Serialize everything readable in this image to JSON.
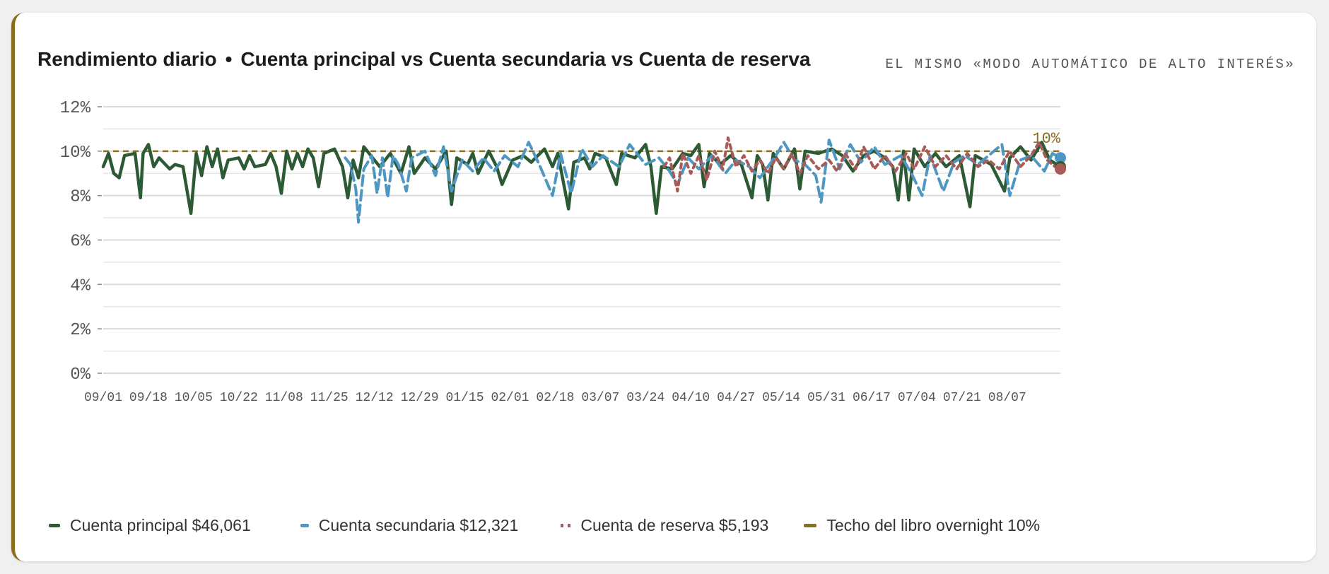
{
  "header": {
    "title_main": "Rendimiento diario",
    "title_separator": "•",
    "title_accounts": "Cuenta principal vs Cuenta secundaria vs Cuenta de reserva",
    "subtitle": "EL MISMO «MODO AUTOMÁTICO DE ALTO INTERÉS»"
  },
  "colors": {
    "primary": "#2b5a34",
    "secondary": "#4d97c2",
    "reserve": "#a85a57",
    "ceiling": "#8a6d1f",
    "card_accent": "#8a6d1f",
    "grid": "#dadada"
  },
  "legend": {
    "primary": "Cuenta principal $46,061",
    "secondary": "Cuenta secundaria $12,321",
    "reserve": "Cuenta de reserva $5,193",
    "ceiling": "Techo del libro overnight 10%"
  },
  "chart_data": {
    "type": "line",
    "title": "Rendimiento diario • Cuenta principal vs Cuenta secundaria vs Cuenta de reserva",
    "subtitle": "EL MISMO «MODO AUTOMÁTICO DE ALTO INTERÉS»",
    "xlabel": "",
    "ylabel": "",
    "y_unit": "%",
    "ylim": [
      0,
      12
    ],
    "y_ticks": [
      "0%",
      "2%",
      "4%",
      "6%",
      "8%",
      "10%",
      "12%"
    ],
    "y_tick_values": [
      0,
      2,
      4,
      6,
      8,
      10,
      12
    ],
    "x_range": [
      "09/01",
      "08/27"
    ],
    "x_tick_labels": [
      "09/01",
      "09/18",
      "10/05",
      "10/22",
      "11/08",
      "11/25",
      "12/12",
      "12/29",
      "01/15",
      "02/01",
      "02/18",
      "03/07",
      "03/24",
      "04/10",
      "04/27",
      "05/14",
      "05/31",
      "06/17",
      "07/04",
      "07/21",
      "08/07"
    ],
    "grid": true,
    "legend_position": "bottom",
    "reference_line": {
      "name": "Techo del libro overnight 10%",
      "value": 10,
      "label": "10%",
      "style": "dashed"
    },
    "series": [
      {
        "name": "Cuenta principal",
        "style": "solid",
        "start": "09/01",
        "end": "08/27",
        "keypoints": [
          [
            "09/01",
            9.3
          ],
          [
            "09/03",
            9.9
          ],
          [
            "09/05",
            9.0
          ],
          [
            "09/07",
            8.8
          ],
          [
            "09/09",
            9.8
          ],
          [
            "09/13",
            9.9
          ],
          [
            "09/15",
            7.9
          ],
          [
            "09/16",
            9.9
          ],
          [
            "09/18",
            10.3
          ],
          [
            "09/20",
            9.3
          ],
          [
            "09/22",
            9.7
          ],
          [
            "09/26",
            9.2
          ],
          [
            "09/28",
            9.4
          ],
          [
            "10/01",
            9.3
          ],
          [
            "10/04",
            7.2
          ],
          [
            "10/06",
            9.9
          ],
          [
            "10/08",
            8.9
          ],
          [
            "10/10",
            10.2
          ],
          [
            "10/12",
            9.3
          ],
          [
            "10/14",
            10.1
          ],
          [
            "10/16",
            8.8
          ],
          [
            "10/18",
            9.6
          ],
          [
            "10/22",
            9.7
          ],
          [
            "10/24",
            9.2
          ],
          [
            "10/26",
            9.8
          ],
          [
            "10/28",
            9.3
          ],
          [
            "11/01",
            9.4
          ],
          [
            "11/03",
            9.9
          ],
          [
            "11/05",
            9.3
          ],
          [
            "11/07",
            8.1
          ],
          [
            "11/09",
            10.0
          ],
          [
            "11/11",
            9.2
          ],
          [
            "11/13",
            9.9
          ],
          [
            "11/15",
            9.3
          ],
          [
            "11/17",
            10.1
          ],
          [
            "11/19",
            9.7
          ],
          [
            "11/21",
            8.4
          ],
          [
            "11/23",
            9.9
          ],
          [
            "11/27",
            10.1
          ],
          [
            "11/30",
            9.3
          ],
          [
            "12/02",
            7.9
          ],
          [
            "12/04",
            9.6
          ],
          [
            "12/06",
            8.8
          ],
          [
            "12/08",
            10.2
          ],
          [
            "12/12",
            9.6
          ],
          [
            "12/14",
            9.3
          ],
          [
            "12/18",
            9.9
          ],
          [
            "12/22",
            9.0
          ],
          [
            "12/25",
            10.2
          ],
          [
            "12/27",
            9.0
          ],
          [
            "12/31",
            9.7
          ],
          [
            "01/04",
            9.2
          ],
          [
            "01/08",
            10.0
          ],
          [
            "01/10",
            7.6
          ],
          [
            "01/12",
            9.7
          ],
          [
            "01/16",
            9.4
          ],
          [
            "01/18",
            9.9
          ],
          [
            "01/20",
            9.0
          ],
          [
            "01/24",
            10.0
          ],
          [
            "01/27",
            9.3
          ],
          [
            "01/29",
            8.5
          ],
          [
            "02/02",
            9.6
          ],
          [
            "02/06",
            9.8
          ],
          [
            "02/09",
            9.5
          ],
          [
            "02/14",
            10.1
          ],
          [
            "02/17",
            9.3
          ],
          [
            "02/19",
            9.9
          ],
          [
            "02/23",
            7.4
          ],
          [
            "02/25",
            9.5
          ],
          [
            "03/01",
            9.7
          ],
          [
            "03/03",
            9.2
          ],
          [
            "03/05",
            9.9
          ],
          [
            "03/09",
            9.7
          ],
          [
            "03/13",
            8.5
          ],
          [
            "03/15",
            9.9
          ],
          [
            "03/20",
            9.7
          ],
          [
            "03/24",
            10.3
          ],
          [
            "03/26",
            9.3
          ],
          [
            "03/28",
            7.2
          ],
          [
            "03/30",
            9.3
          ],
          [
            "04/03",
            9.2
          ],
          [
            "04/07",
            9.9
          ],
          [
            "04/10",
            9.8
          ],
          [
            "04/13",
            10.3
          ],
          [
            "04/15",
            8.4
          ],
          [
            "04/17",
            9.9
          ],
          [
            "04/21",
            9.4
          ],
          [
            "04/25",
            9.8
          ],
          [
            "04/29",
            9.4
          ],
          [
            "05/03",
            7.9
          ],
          [
            "05/05",
            9.8
          ],
          [
            "05/07",
            9.4
          ],
          [
            "05/09",
            7.8
          ],
          [
            "05/11",
            9.9
          ],
          [
            "05/15",
            9.2
          ],
          [
            "05/19",
            10.1
          ],
          [
            "05/21",
            8.3
          ],
          [
            "05/23",
            10.0
          ],
          [
            "05/28",
            9.9
          ],
          [
            "06/02",
            10.1
          ],
          [
            "06/06",
            9.8
          ],
          [
            "06/10",
            9.1
          ],
          [
            "06/14",
            9.8
          ],
          [
            "06/18",
            10.0
          ],
          [
            "06/22",
            9.7
          ],
          [
            "06/25",
            9.3
          ],
          [
            "06/27",
            7.8
          ],
          [
            "06/29",
            10.0
          ],
          [
            "07/01",
            7.8
          ],
          [
            "07/03",
            10.1
          ],
          [
            "07/07",
            9.3
          ],
          [
            "07/11",
            9.9
          ],
          [
            "07/15",
            9.3
          ],
          [
            "07/20",
            9.8
          ],
          [
            "07/24",
            7.5
          ],
          [
            "07/26",
            9.8
          ],
          [
            "08/01",
            9.4
          ],
          [
            "08/06",
            8.2
          ],
          [
            "08/08",
            9.7
          ],
          [
            "08/12",
            10.2
          ],
          [
            "08/16",
            9.6
          ],
          [
            "08/20",
            10.4
          ],
          [
            "08/23",
            9.6
          ],
          [
            "08/27",
            9.3
          ]
        ]
      },
      {
        "name": "Cuenta secundaria",
        "style": "dashed",
        "start": "12/01",
        "end": "08/27",
        "keypoints": [
          [
            "12/01",
            9.7
          ],
          [
            "12/03",
            9.4
          ],
          [
            "12/05",
            8.3
          ],
          [
            "12/06",
            6.8
          ],
          [
            "12/08",
            9.2
          ],
          [
            "12/11",
            9.8
          ],
          [
            "12/13",
            8.1
          ],
          [
            "12/15",
            9.7
          ],
          [
            "12/17",
            7.9
          ],
          [
            "12/19",
            9.8
          ],
          [
            "12/21",
            9.4
          ],
          [
            "12/24",
            8.2
          ],
          [
            "12/26",
            9.7
          ],
          [
            "12/31",
            10.0
          ],
          [
            "01/04",
            8.9
          ],
          [
            "01/07",
            10.2
          ],
          [
            "01/10",
            8.2
          ],
          [
            "01/14",
            9.6
          ],
          [
            "01/18",
            9.1
          ],
          [
            "01/22",
            9.7
          ],
          [
            "01/26",
            9.1
          ],
          [
            "01/30",
            9.8
          ],
          [
            "02/04",
            9.3
          ],
          [
            "02/08",
            10.4
          ],
          [
            "02/12",
            9.4
          ],
          [
            "02/17",
            8.0
          ],
          [
            "02/20",
            9.9
          ],
          [
            "02/24",
            8.1
          ],
          [
            "02/28",
            10.1
          ],
          [
            "03/04",
            9.3
          ],
          [
            "03/08",
            9.8
          ],
          [
            "03/14",
            9.3
          ],
          [
            "03/18",
            10.3
          ],
          [
            "03/24",
            9.4
          ],
          [
            "03/29",
            9.7
          ],
          [
            "04/02",
            9.1
          ],
          [
            "04/05",
            8.5
          ],
          [
            "04/09",
            9.7
          ],
          [
            "04/13",
            9.2
          ],
          [
            "04/18",
            9.8
          ],
          [
            "04/23",
            9.0
          ],
          [
            "04/27",
            9.6
          ],
          [
            "05/02",
            9.3
          ],
          [
            "05/06",
            8.8
          ],
          [
            "05/12",
            9.8
          ],
          [
            "05/15",
            10.4
          ],
          [
            "05/19",
            9.6
          ],
          [
            "05/23",
            9.4
          ],
          [
            "05/27",
            8.9
          ],
          [
            "05/29",
            7.7
          ],
          [
            "06/01",
            10.5
          ],
          [
            "06/05",
            9.2
          ],
          [
            "06/09",
            10.3
          ],
          [
            "06/13",
            9.5
          ],
          [
            "06/18",
            10.2
          ],
          [
            "06/22",
            9.4
          ],
          [
            "06/28",
            9.8
          ],
          [
            "07/02",
            9.0
          ],
          [
            "07/06",
            8.0
          ],
          [
            "07/09",
            9.8
          ],
          [
            "07/14",
            8.2
          ],
          [
            "07/18",
            9.5
          ],
          [
            "07/22",
            9.8
          ],
          [
            "07/27",
            9.4
          ],
          [
            "08/01",
            9.9
          ],
          [
            "08/05",
            10.3
          ],
          [
            "08/08",
            8.0
          ],
          [
            "08/12",
            9.6
          ],
          [
            "08/16",
            9.8
          ],
          [
            "08/21",
            9.1
          ],
          [
            "08/24",
            9.9
          ],
          [
            "08/27",
            9.7
          ]
        ]
      },
      {
        "name": "Cuenta de reserva",
        "style": "dotted",
        "start": "03/31",
        "end": "08/27",
        "keypoints": [
          [
            "03/31",
            9.3
          ],
          [
            "04/02",
            9.7
          ],
          [
            "04/05",
            8.2
          ],
          [
            "04/07",
            9.9
          ],
          [
            "04/10",
            9.0
          ],
          [
            "04/13",
            9.8
          ],
          [
            "04/16",
            8.7
          ],
          [
            "04/19",
            10.0
          ],
          [
            "04/22",
            9.2
          ],
          [
            "04/24",
            10.6
          ],
          [
            "04/27",
            9.3
          ],
          [
            "04/30",
            9.8
          ],
          [
            "05/03",
            9.1
          ],
          [
            "05/06",
            9.6
          ],
          [
            "05/09",
            9.0
          ],
          [
            "05/12",
            9.7
          ],
          [
            "05/15",
            9.2
          ],
          [
            "05/18",
            9.9
          ],
          [
            "05/21",
            9.0
          ],
          [
            "05/24",
            9.8
          ],
          [
            "05/28",
            9.2
          ],
          [
            "06/01",
            9.6
          ],
          [
            "06/04",
            9.1
          ],
          [
            "06/07",
            9.9
          ],
          [
            "06/11",
            9.2
          ],
          [
            "06/14",
            10.2
          ],
          [
            "06/18",
            9.2
          ],
          [
            "06/22",
            9.8
          ],
          [
            "06/26",
            9.1
          ],
          [
            "06/30",
            9.9
          ],
          [
            "07/03",
            9.2
          ],
          [
            "07/07",
            10.2
          ],
          [
            "07/11",
            9.3
          ],
          [
            "07/15",
            9.8
          ],
          [
            "07/19",
            9.2
          ],
          [
            "07/23",
            9.9
          ],
          [
            "07/27",
            9.3
          ],
          [
            "07/31",
            9.6
          ],
          [
            "08/04",
            9.2
          ],
          [
            "08/08",
            10.0
          ],
          [
            "08/12",
            9.3
          ],
          [
            "08/16",
            9.8
          ],
          [
            "08/19",
            10.4
          ],
          [
            "08/22",
            9.6
          ],
          [
            "08/25",
            9.3
          ],
          [
            "08/27",
            9.2
          ]
        ]
      }
    ]
  }
}
